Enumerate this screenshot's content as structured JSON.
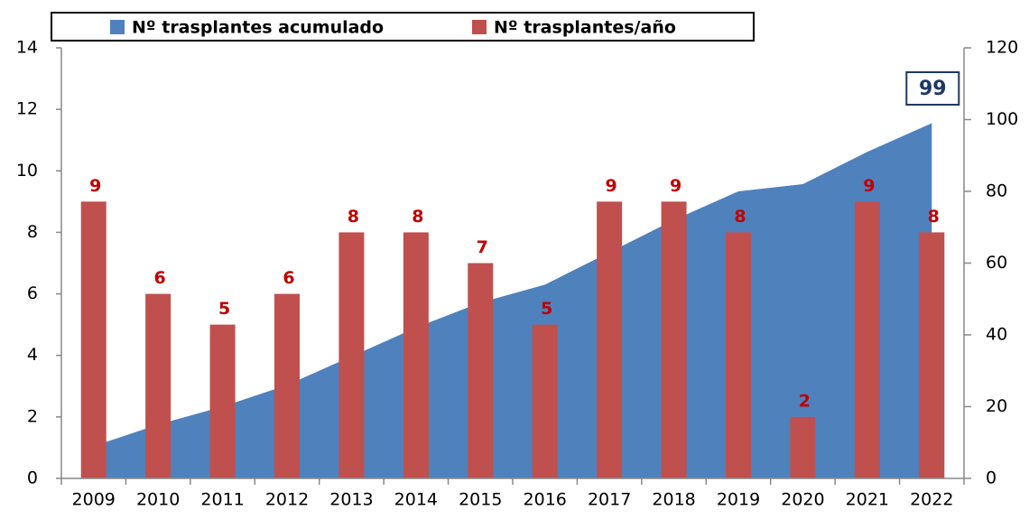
{
  "chart_data": {
    "type": "bar+area",
    "categories": [
      "2009",
      "2010",
      "2011",
      "2012",
      "2013",
      "2014",
      "2015",
      "2016",
      "2017",
      "2018",
      "2019",
      "2020",
      "2021",
      "2022"
    ],
    "series": [
      {
        "name": "Nº trasplantes acumulado",
        "type": "area",
        "axis": "y2",
        "color": "#4f81bd",
        "values": [
          9,
          15,
          20,
          26,
          34,
          42,
          49,
          54,
          63,
          72,
          80,
          82,
          91,
          99
        ]
      },
      {
        "name": "Nº trasplantes/año",
        "type": "bar",
        "axis": "y",
        "color": "#c0504d",
        "label_color": "#c00000",
        "values": [
          9,
          6,
          5,
          6,
          8,
          8,
          7,
          5,
          9,
          9,
          8,
          2,
          9,
          8
        ]
      }
    ],
    "ylim": [
      0,
      14
    ],
    "yticks": [
      0,
      2,
      4,
      6,
      8,
      10,
      12,
      14
    ],
    "y2lim": [
      0,
      120
    ],
    "y2ticks": [
      0,
      20,
      40,
      60,
      80,
      100,
      120
    ],
    "grid": false,
    "legend": "top"
  }
}
